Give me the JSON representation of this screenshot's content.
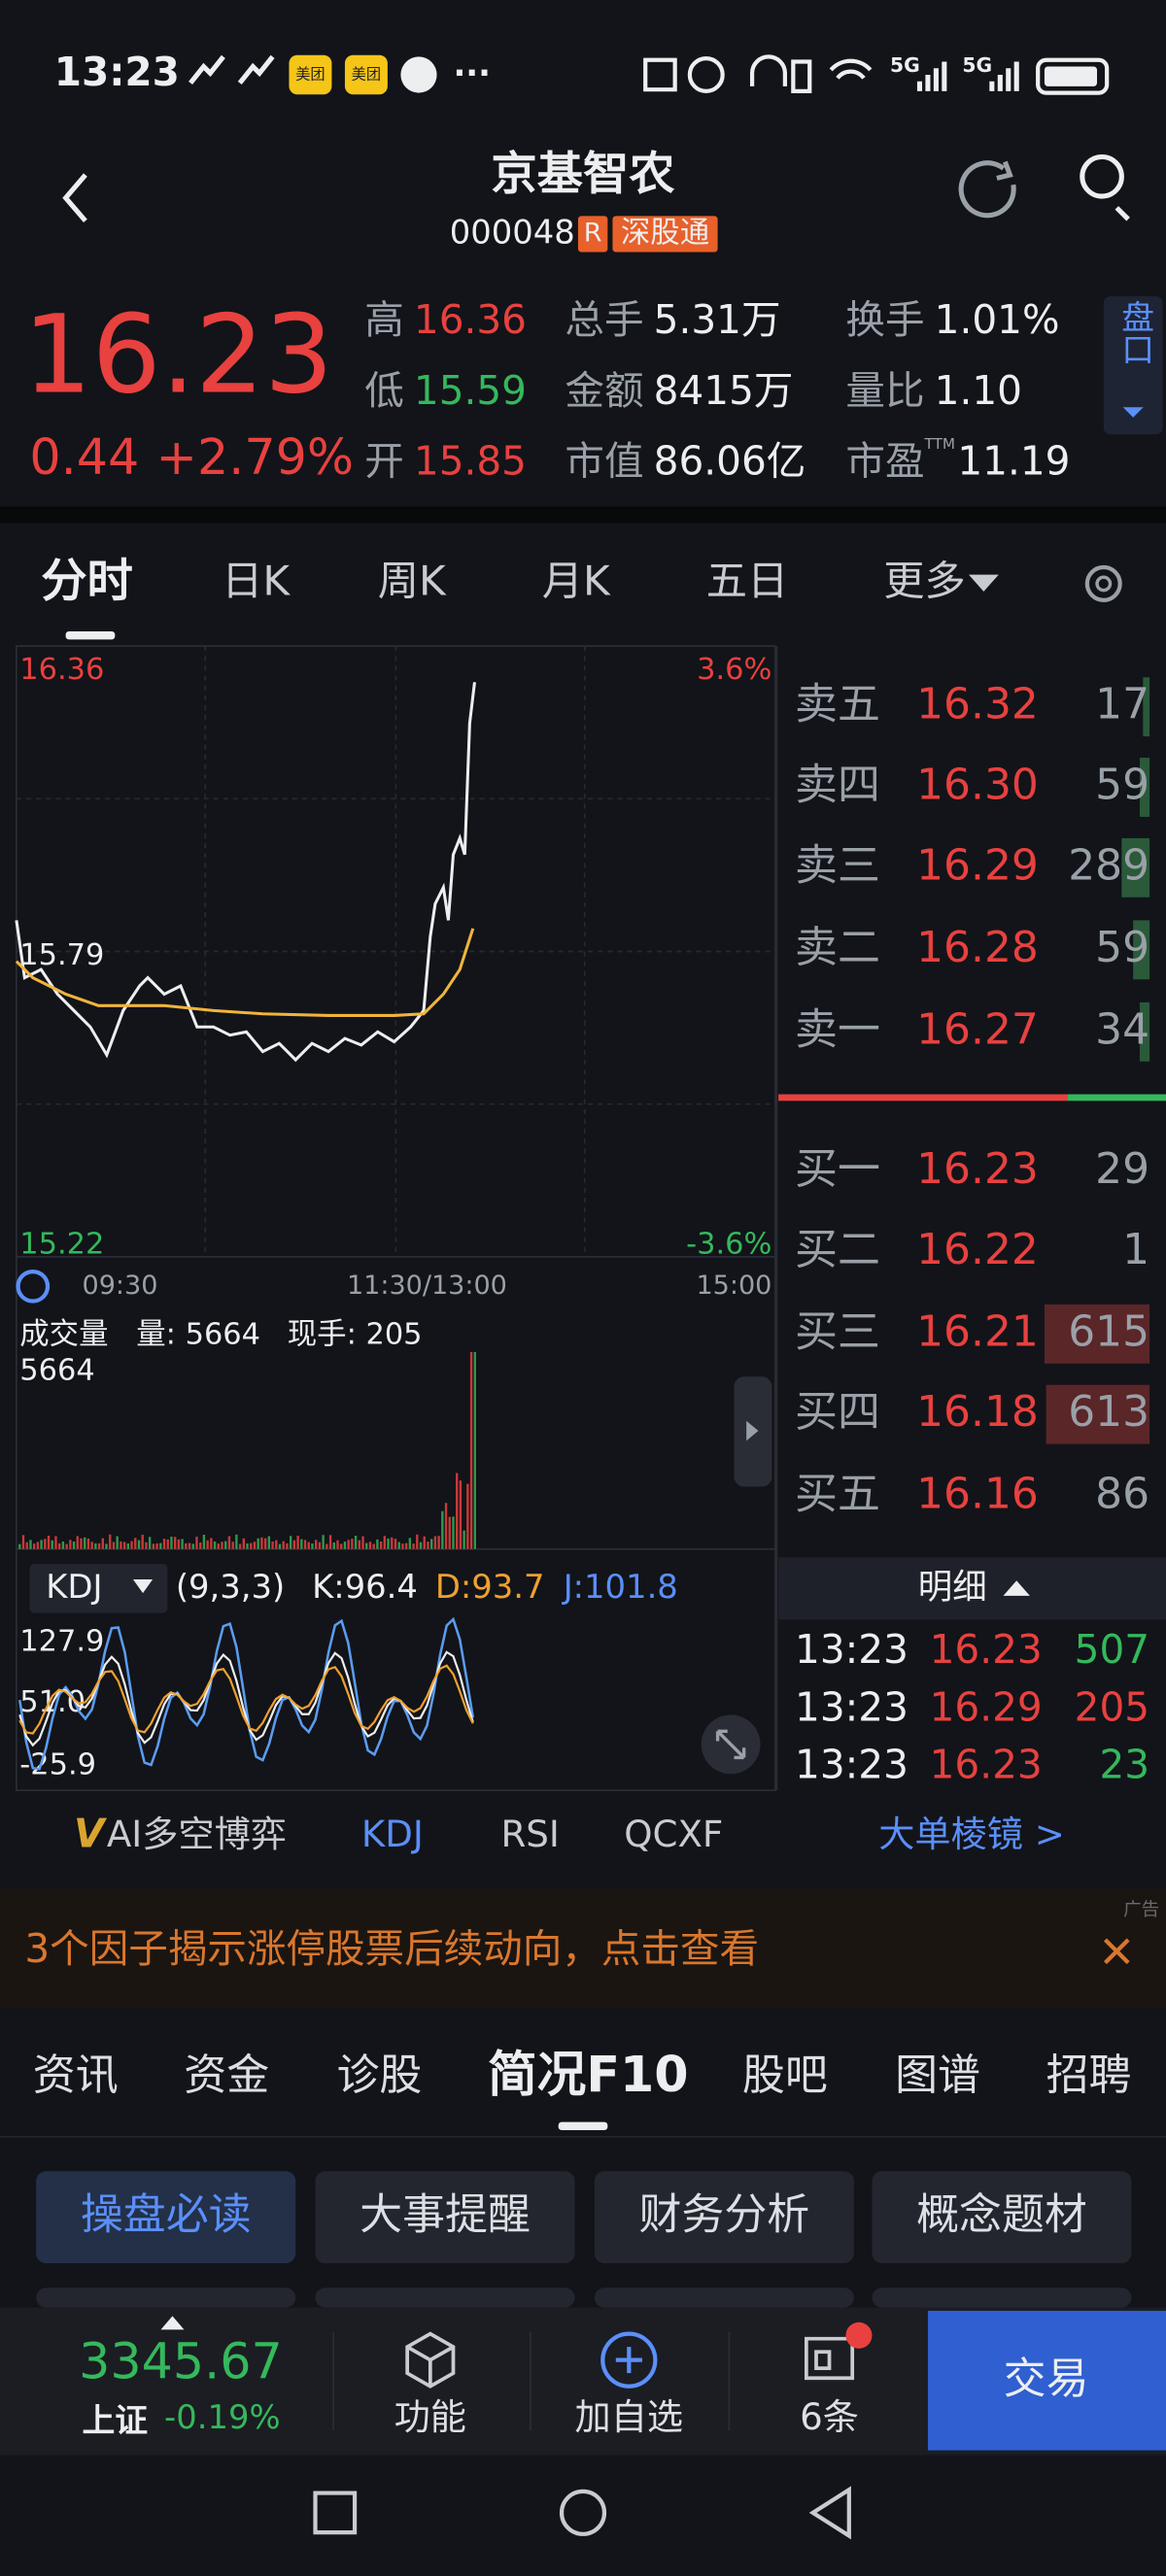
{
  "status_bar": {
    "time": "13:23",
    "apps": [
      "美团",
      "美团"
    ],
    "more": "···",
    "signal": [
      "5G",
      "5G"
    ]
  },
  "header": {
    "title": "京基智农",
    "code": "000048",
    "badge": "R",
    "tag": "深股通"
  },
  "quote": {
    "price": "16.23",
    "change": "0.44",
    "change_pct": "+2.79%",
    "stats": [
      {
        "label": "高",
        "value": "16.36"
      },
      {
        "label": "低",
        "value": "15.59"
      },
      {
        "label": "开",
        "value": "15.85"
      },
      {
        "label": "总手",
        "value": "5.31万"
      },
      {
        "label": "金额",
        "value": "8415万"
      },
      {
        "label": "市值",
        "value": "86.06亿"
      },
      {
        "label": "换手",
        "value": "1.01%"
      },
      {
        "label": "量比",
        "value": "1.10"
      },
      {
        "label": "市盈",
        "sup": "TTM",
        "value": "11.19"
      }
    ],
    "side_tab": "盘口"
  },
  "tabs": [
    "分时",
    "日K",
    "周K",
    "月K",
    "五日",
    "更多"
  ],
  "chart": {
    "price_high": "16.36",
    "price_mid": "15.79",
    "price_low": "15.22",
    "pct_high": "3.6%",
    "pct_low": "-3.6%",
    "times": [
      "09:30",
      "11:30/13:00",
      "15:00"
    ],
    "volume": {
      "title": "成交量",
      "vol": "量: 5664",
      "hand": "现手: 205",
      "max": "5664"
    },
    "kdj": {
      "name": "KDJ",
      "params": "(9,3,3)",
      "k": "K:96.4",
      "d": "D:93.7",
      "j": "J:101.8",
      "ticks": [
        "127.9",
        "51.0",
        "-25.9"
      ]
    }
  },
  "order_book": {
    "asks": [
      {
        "label": "卖五",
        "price": "16.32",
        "vol": "17"
      },
      {
        "label": "卖四",
        "price": "16.30",
        "vol": "59"
      },
      {
        "label": "卖三",
        "price": "16.29",
        "vol": "289"
      },
      {
        "label": "卖二",
        "price": "16.28",
        "vol": "59"
      },
      {
        "label": "卖一",
        "price": "16.27",
        "vol": "34"
      }
    ],
    "bids": [
      {
        "label": "买一",
        "price": "16.23",
        "vol": "29"
      },
      {
        "label": "买二",
        "price": "16.22",
        "vol": "1"
      },
      {
        "label": "买三",
        "price": "16.21",
        "vol": "615"
      },
      {
        "label": "买四",
        "price": "16.18",
        "vol": "613"
      },
      {
        "label": "买五",
        "price": "16.16",
        "vol": "86"
      }
    ]
  },
  "detail": {
    "title": "明细",
    "rows": [
      [
        "13:23",
        "16.23",
        "507"
      ],
      [
        "13:23",
        "16.29",
        "205"
      ],
      [
        "13:23",
        "16.23",
        "23"
      ]
    ]
  },
  "indicators": {
    "logo": "V",
    "items": [
      "AI多空博弈",
      "KDJ",
      "RSI",
      "QCXF"
    ],
    "link": "大单棱镜 >"
  },
  "ad": {
    "text": "3个因子揭示涨停股票后续动向，点击查看",
    "tag": "广告"
  },
  "nav": [
    "资讯",
    "资金",
    "诊股",
    "简况F10",
    "股吧",
    "图谱",
    "招聘"
  ],
  "buttons": [
    "操盘必读",
    "大事提醒",
    "财务分析",
    "概念题材"
  ],
  "bottom": {
    "index_value": "3345.67",
    "index_name": "上证",
    "index_change": "-0.19%",
    "items": [
      "功能",
      "加自选",
      "6条"
    ],
    "trade": "交易"
  }
}
